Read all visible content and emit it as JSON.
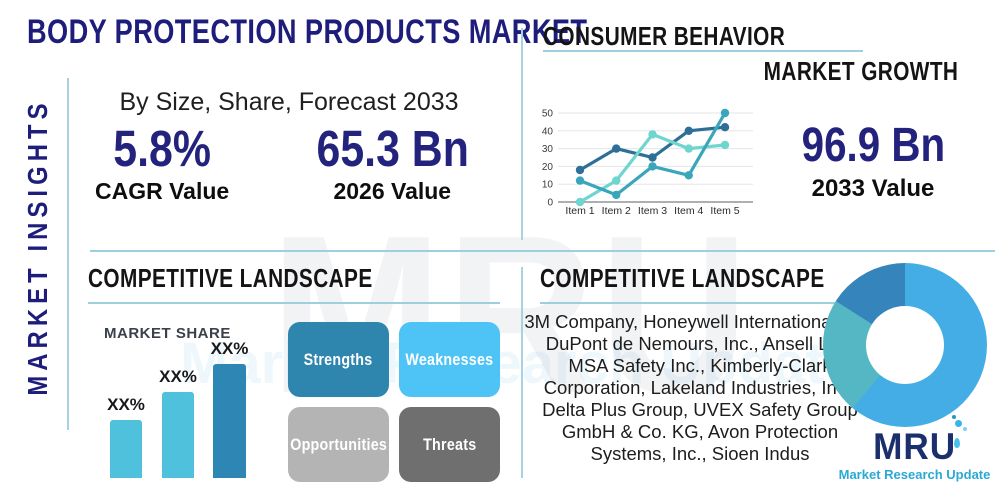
{
  "header": {
    "title": "BODY PROTECTION PRODUCTS MARKET"
  },
  "sidebar": {
    "vertical_label": "MARKET INSIGHTS"
  },
  "insights": {
    "subtitle": "By Size, Share, Forecast 2033",
    "stats": [
      {
        "value": "5.8%",
        "label": "CAGR Value"
      },
      {
        "value": "65.3 Bn",
        "label": "2026 Value"
      }
    ]
  },
  "consumer_behavior": {
    "title": "CONSUMER BEHAVIOR",
    "subtitle": "MARKET GROWTH",
    "stat": {
      "value": "96.9 Bn",
      "label": "2033 Value"
    }
  },
  "competitive_landscape_left": {
    "title": "COMPETITIVE LANDSCAPE",
    "market_share_label": "MARKET SHARE"
  },
  "competitive_landscape_right": {
    "title": "COMPETITIVE LANDSCAPE",
    "companies": "3M Company, Honeywell International Inc., DuPont de Nemours, Inc., Ansell Ltd., MSA Safety Inc., Kimberly-Clark Corporation, Lakeland Industries, Inc., Delta Plus Group, UVEX Safety Group GmbH & Co. KG, Avon Protection Systems, Inc., Sioen Indus"
  },
  "swot": {
    "boxes": [
      {
        "label": "Strengths",
        "color": "#2e85ad"
      },
      {
        "label": "Weaknesses",
        "color": "#4dc3f6"
      },
      {
        "label": "Opportunities",
        "color": "#b4b4b4"
      },
      {
        "label": "Threats",
        "color": "#6f6f6f"
      }
    ]
  },
  "chart_data": [
    {
      "type": "line",
      "title": "CONSUMER BEHAVIOR",
      "x": [
        "Item 1",
        "Item 2",
        "Item 3",
        "Item 4",
        "Item 5"
      ],
      "series": [
        {
          "name": "series-dark-blue",
          "color": "#2d6f96",
          "values": [
            18,
            30,
            25,
            40,
            42
          ]
        },
        {
          "name": "series-light-cyan",
          "color": "#6fd5cf",
          "values": [
            0,
            12,
            38,
            30,
            32
          ]
        },
        {
          "name": "series-teal",
          "color": "#3aa6bc",
          "values": [
            12,
            4,
            20,
            15,
            50
          ]
        }
      ],
      "ylim": [
        0,
        50
      ],
      "yticks": [
        0,
        10,
        20,
        30,
        40,
        50
      ],
      "grid": true,
      "legend": false
    },
    {
      "type": "bar",
      "title": "MARKET SHARE",
      "categories": [
        "XX%",
        "XX%",
        "XX%"
      ],
      "values": [
        51,
        75,
        100
      ],
      "value_note": "relative heights, percent of tallest bar; actual values masked as XX%",
      "colors": [
        "#4fc1dd",
        "#4fc1dd",
        "#2e86b5"
      ],
      "ylabel": "",
      "xlabel": ""
    },
    {
      "type": "pie",
      "donut": true,
      "slices": [
        {
          "label": "segment-light-blue",
          "value": 61,
          "color": "#45ade5"
        },
        {
          "label": "segment-teal",
          "value": 23,
          "color": "#55b7c3"
        },
        {
          "label": "segment-steel-blue",
          "value": 16,
          "color": "#3584bb"
        }
      ]
    }
  ],
  "logo": {
    "text": "MRU",
    "tagline": "Market Research Update"
  },
  "watermark": {
    "text": "MRU",
    "tagline": "Market Research Update"
  },
  "colors": {
    "title_navy": "#1e1d7b",
    "stat_navy": "#23237d",
    "heading_black": "#141414",
    "divider_blue": "#a6d2e3",
    "underline_teal": "#9fcfdf",
    "logo_navy": "#1b2f6e",
    "logo_teal": "#29a9d4"
  }
}
